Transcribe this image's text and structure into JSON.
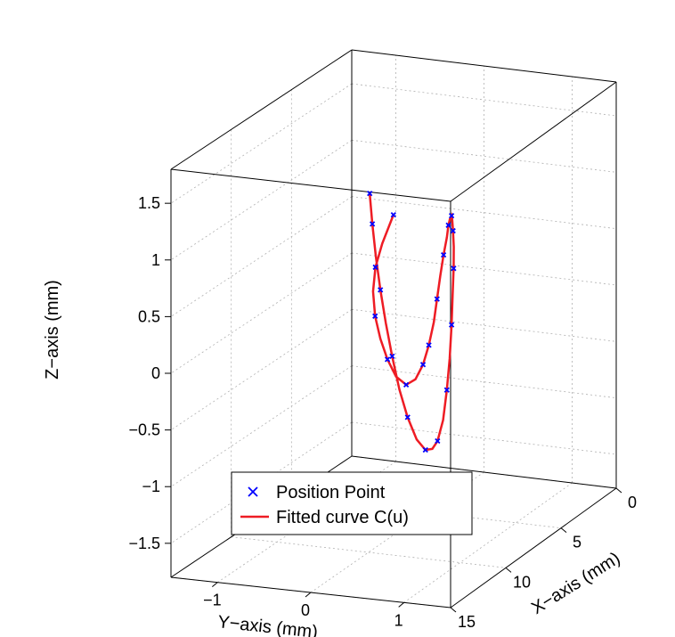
{
  "type": "3d-line-scatter",
  "background_color": "#ffffff",
  "cube_edge_color": "#000000",
  "grid_color": "#b0b0b0",
  "grid_dash": "2 3",
  "axis_label_fontsize": 20,
  "tick_label_fontsize": 18,
  "legend_fontsize": 20,
  "x": {
    "label": "X−axis (mm)",
    "min": 0,
    "max": 15,
    "ticks": [
      0,
      5,
      10,
      15
    ]
  },
  "y": {
    "label": "Y−axis (mm)",
    "min": -1.5,
    "max": 1.5,
    "ticks": [
      -1,
      0,
      1
    ]
  },
  "z": {
    "label": "Z−axis (mm)",
    "min": -1.8,
    "max": 1.8,
    "ticks": [
      -1.5,
      -1,
      -0.5,
      0,
      0.5,
      1,
      1.5
    ]
  },
  "curve": {
    "color": "#ee1c24",
    "points": [
      [
        0.2,
        -1.0,
        0.4
      ],
      [
        0.4,
        -1.1,
        0.15
      ],
      [
        0.6,
        -1.15,
        -0.05
      ],
      [
        0.8,
        -1.15,
        -0.25
      ],
      [
        1.0,
        -1.1,
        -0.45
      ],
      [
        1.3,
        -1.0,
        -0.62
      ],
      [
        1.6,
        -0.88,
        -0.77
      ],
      [
        2.0,
        -0.73,
        -0.88
      ],
      [
        2.5,
        -0.55,
        -0.9
      ],
      [
        3.0,
        -0.38,
        -0.8
      ],
      [
        3.5,
        -0.23,
        -0.62
      ],
      [
        4.0,
        -0.1,
        -0.4
      ],
      [
        4.5,
        0.02,
        -0.15
      ],
      [
        5.0,
        0.12,
        0.1
      ],
      [
        5.5,
        0.22,
        0.35
      ],
      [
        6.0,
        0.32,
        0.58
      ],
      [
        6.5,
        0.42,
        0.78
      ],
      [
        7.0,
        0.5,
        0.93
      ],
      [
        7.5,
        0.58,
        1.03
      ],
      [
        8.0,
        0.66,
        1.1
      ],
      [
        8.5,
        0.73,
        1.1
      ],
      [
        9.0,
        0.8,
        1.05
      ],
      [
        9.5,
        0.87,
        0.95
      ],
      [
        10.0,
        0.93,
        0.8
      ],
      [
        10.5,
        0.98,
        0.6
      ],
      [
        11.0,
        1.03,
        0.38
      ],
      [
        11.5,
        1.07,
        0.12
      ],
      [
        12.0,
        1.1,
        -0.12
      ],
      [
        12.5,
        1.12,
        -0.35
      ],
      [
        13.0,
        1.12,
        -0.5
      ],
      [
        13.3,
        1.1,
        -0.55
      ],
      [
        13.5,
        1.05,
        -0.55
      ],
      [
        13.7,
        0.98,
        -0.45
      ],
      [
        13.85,
        0.9,
        -0.25
      ],
      [
        14.0,
        0.83,
        0.0
      ],
      [
        14.15,
        0.77,
        0.3
      ],
      [
        14.3,
        0.72,
        0.6
      ],
      [
        14.45,
        0.68,
        0.9
      ],
      [
        14.6,
        0.65,
        1.2
      ],
      [
        14.75,
        0.63,
        1.5
      ],
      [
        14.9,
        0.62,
        1.78
      ]
    ]
  },
  "markers": {
    "color": "#0000ff",
    "size": 5,
    "points": [
      [
        0.2,
        -1.0,
        0.4
      ],
      [
        0.6,
        -1.15,
        -0.05
      ],
      [
        1.0,
        -1.1,
        -0.45
      ],
      [
        1.6,
        -0.88,
        -0.77
      ],
      [
        2.5,
        -0.55,
        -0.9
      ],
      [
        3.5,
        -0.23,
        -0.62
      ],
      [
        4.0,
        -0.1,
        -0.4
      ],
      [
        5.0,
        0.12,
        0.1
      ],
      [
        6.0,
        0.32,
        0.58
      ],
      [
        7.0,
        0.5,
        0.93
      ],
      [
        8.0,
        0.66,
        1.1
      ],
      [
        9.0,
        0.8,
        1.05
      ],
      [
        10.0,
        0.93,
        0.8
      ],
      [
        11.0,
        1.03,
        0.38
      ],
      [
        12.0,
        1.1,
        -0.12
      ],
      [
        13.0,
        1.12,
        -0.5
      ],
      [
        13.5,
        1.05,
        -0.55
      ],
      [
        13.85,
        0.9,
        -0.25
      ],
      [
        14.15,
        0.77,
        0.3
      ],
      [
        14.45,
        0.68,
        0.9
      ],
      [
        14.75,
        0.63,
        1.5
      ],
      [
        14.9,
        0.62,
        1.78
      ]
    ]
  },
  "legend": {
    "border_color": "#000000",
    "background": "#ffffff",
    "items": [
      {
        "type": "marker",
        "label": "Position Point",
        "color": "#0000ff"
      },
      {
        "type": "line",
        "label": "Fitted curve C(u)",
        "color": "#ee1c24"
      }
    ]
  }
}
